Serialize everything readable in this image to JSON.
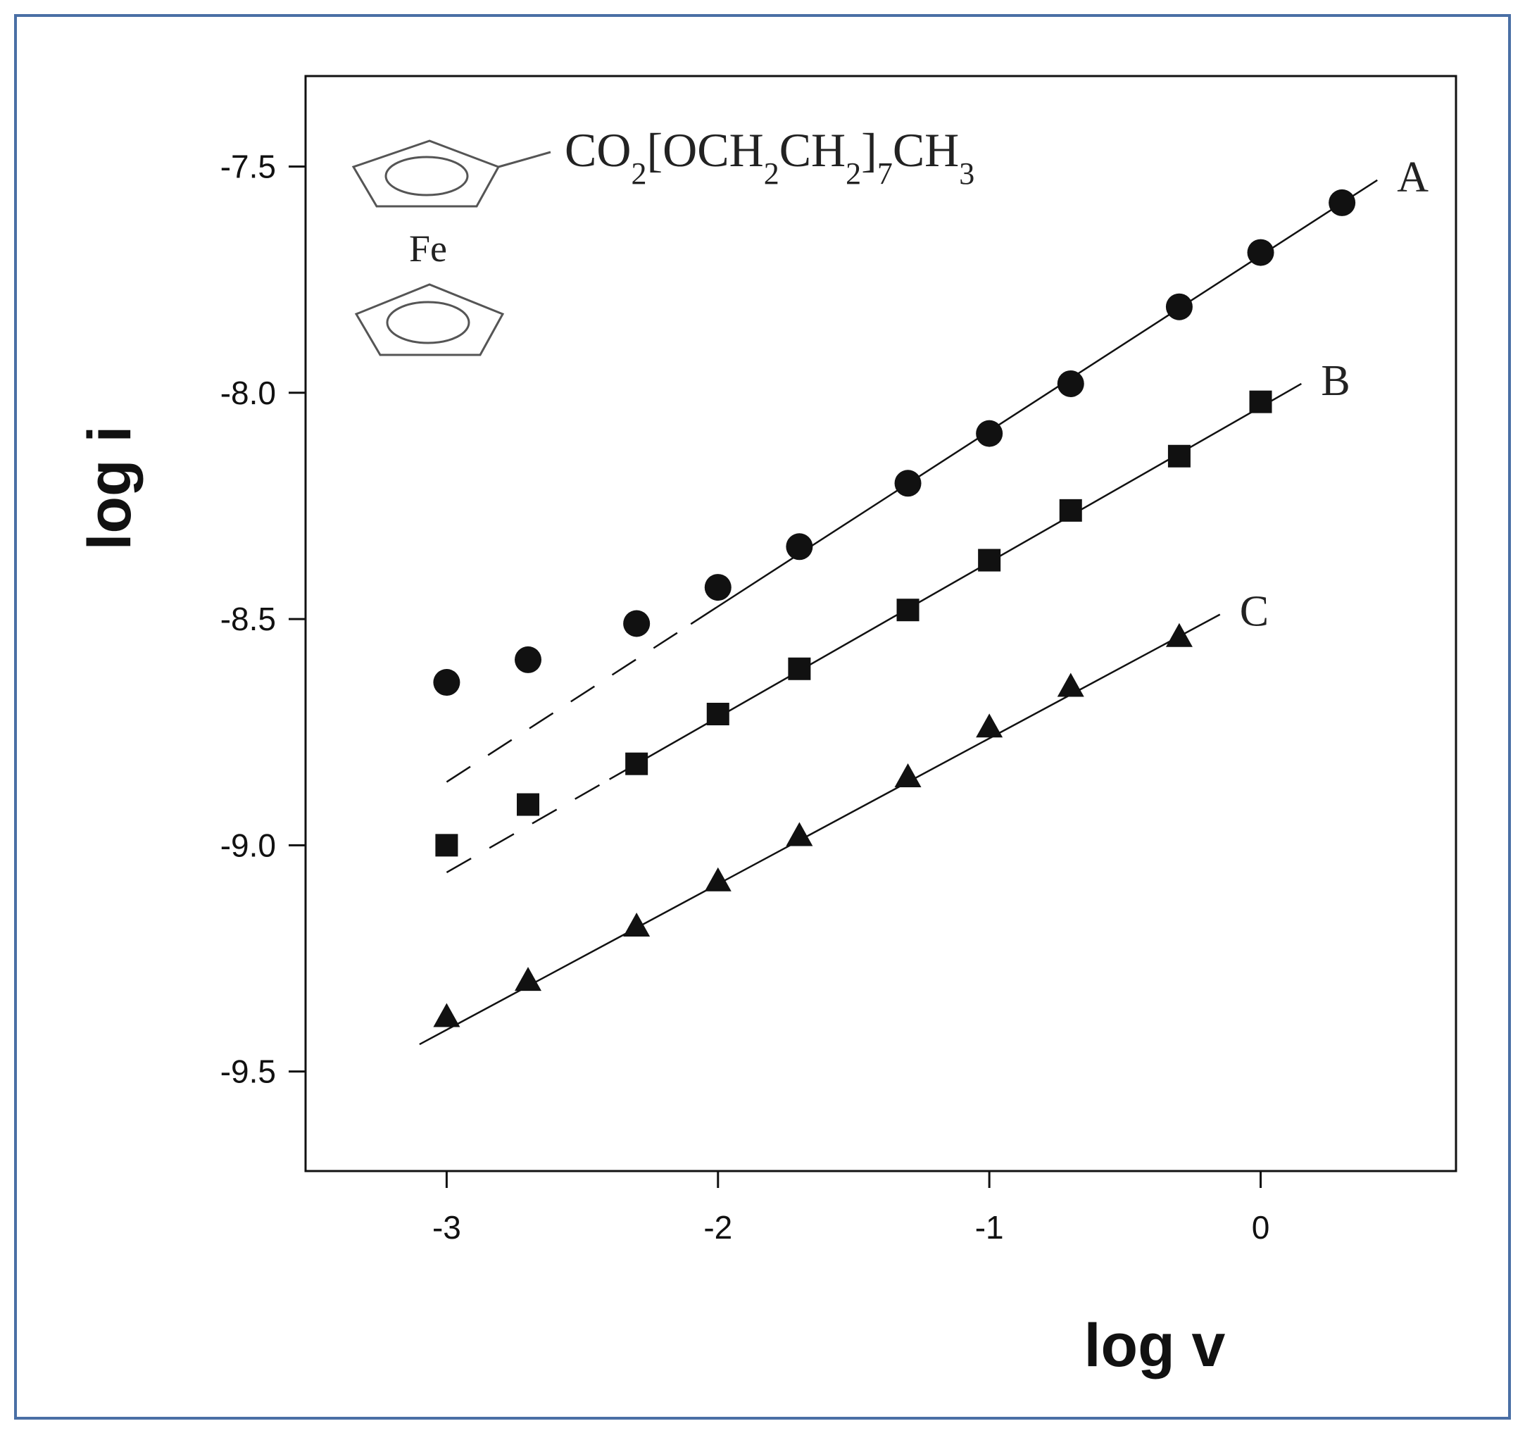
{
  "colors": {
    "frame": "#4a6fa5",
    "ink": "#111111",
    "structure": "#555555"
  },
  "structure": {
    "substituent_parts": [
      {
        "text": "CO",
        "sub": false
      },
      {
        "text": "2",
        "sub": true
      },
      {
        "text": "[OCH",
        "sub": false
      },
      {
        "text": "2",
        "sub": true
      },
      {
        "text": "CH",
        "sub": false
      },
      {
        "text": "2",
        "sub": true
      },
      {
        "text": "]",
        "sub": false
      },
      {
        "text": "7",
        "sub": true
      },
      {
        "text": "CH",
        "sub": false
      },
      {
        "text": "3",
        "sub": true
      }
    ],
    "metal": "Fe"
  },
  "chart_data": {
    "type": "scatter",
    "xlabel": "log v",
    "ylabel": "log i",
    "xlim": [
      -3.52,
      0.72
    ],
    "ylim": [
      -9.72,
      -7.3
    ],
    "x_ticks": [
      -3,
      -2,
      -1,
      0
    ],
    "x_tick_labels": [
      "-3",
      "-2",
      "-1",
      "0"
    ],
    "y_ticks": [
      -7.5,
      -8.0,
      -8.5,
      -9.0,
      -9.5
    ],
    "y_tick_labels": [
      "-7.5",
      "-8.0",
      "-8.5",
      "-9.0",
      "-9.5"
    ],
    "grid": false,
    "series": [
      {
        "name": "A",
        "marker": "circle",
        "x": [
          -3.0,
          -2.7,
          -2.3,
          -2.0,
          -1.7,
          -1.3,
          -1.0,
          -0.7,
          -0.3,
          0.0,
          0.3
        ],
        "y": [
          -8.64,
          -8.59,
          -8.51,
          -8.43,
          -8.34,
          -8.2,
          -8.09,
          -7.98,
          -7.81,
          -7.69,
          -7.58
        ],
        "fit": {
          "x": [
            -3.0,
            0.43
          ],
          "y": [
            -8.86,
            -7.53
          ],
          "solid_from_x": -2.1
        }
      },
      {
        "name": "B",
        "marker": "square",
        "x": [
          -3.0,
          -2.7,
          -2.3,
          -2.0,
          -1.7,
          -1.3,
          -1.0,
          -0.7,
          -0.3,
          0.0
        ],
        "y": [
          -9.0,
          -8.91,
          -8.82,
          -8.71,
          -8.61,
          -8.48,
          -8.37,
          -8.26,
          -8.14,
          -8.02
        ],
        "fit": {
          "x": [
            -3.0,
            0.15
          ],
          "y": [
            -9.06,
            -7.98
          ],
          "solid_from_x": -2.4
        }
      },
      {
        "name": "C",
        "marker": "triangle",
        "x": [
          -3.0,
          -2.7,
          -2.3,
          -2.0,
          -1.7,
          -1.3,
          -1.0,
          -0.7,
          -0.3
        ],
        "y": [
          -9.38,
          -9.3,
          -9.18,
          -9.08,
          -8.98,
          -8.85,
          -8.74,
          -8.65,
          -8.54
        ],
        "fit": {
          "x": [
            -3.1,
            -0.15
          ],
          "y": [
            -9.44,
            -8.49
          ],
          "solid_from_x": -3.1
        }
      }
    ]
  }
}
